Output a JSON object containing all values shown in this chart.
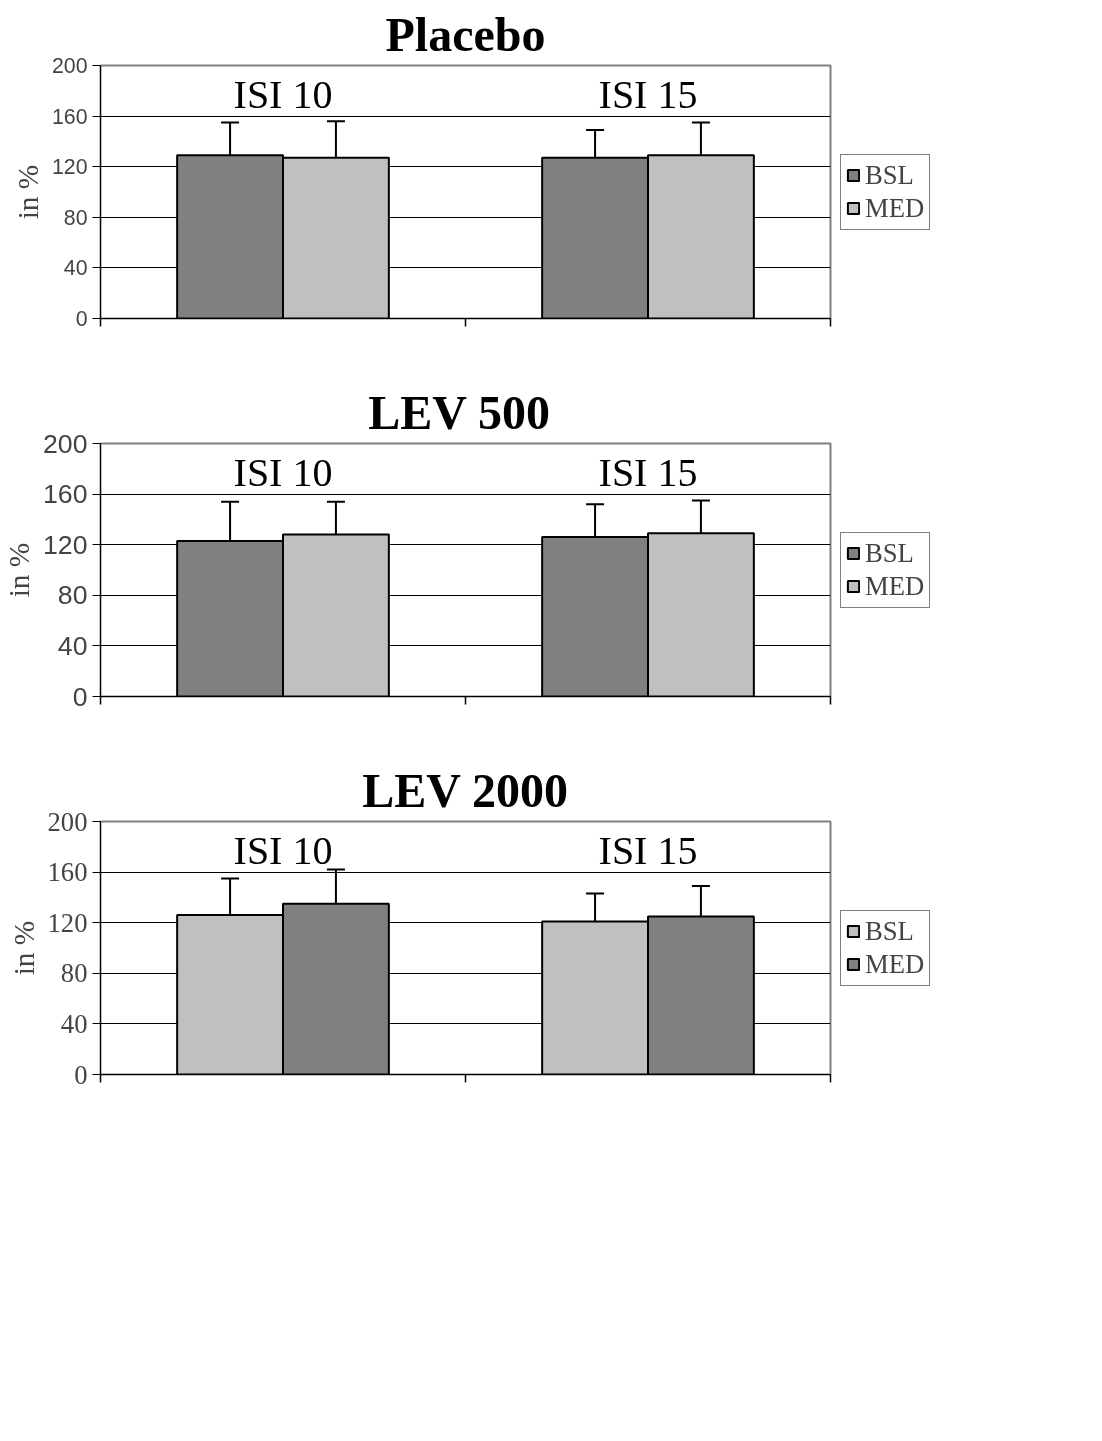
{
  "chart_data": [
    {
      "type": "bar",
      "title": "Placebo",
      "ylabel": "in %",
      "categories": [
        "ISI 10",
        "ISI 15"
      ],
      "series": [
        {
          "name": "BSL",
          "color": "#808080",
          "values": [
            129,
            127
          ],
          "errors": [
            [
              129,
              155
            ],
            [
              127,
              149
            ]
          ]
        },
        {
          "name": "MED",
          "color": "#c0c0c0",
          "values": [
            127,
            129
          ],
          "errors": [
            [
              127,
              156
            ],
            [
              129,
              155
            ]
          ]
        }
      ],
      "ylim": [
        0,
        200
      ],
      "yticks": [
        0,
        40,
        80,
        120,
        160,
        200
      ],
      "grid": "y",
      "legend": "right",
      "tick_labels": "y"
    },
    {
      "type": "bar",
      "title": "LEV  500",
      "ylabel": "in %",
      "categories": [
        "ISI 10",
        "ISI 15"
      ],
      "series": [
        {
          "name": "BSL",
          "color": "#808080",
          "values": [
            123,
            126
          ],
          "errors": [
            [
              123,
              154
            ],
            [
              126,
              152
            ]
          ]
        },
        {
          "name": "MED",
          "color": "#c0c0c0",
          "values": [
            128,
            129
          ],
          "errors": [
            [
              128,
              154
            ],
            [
              129,
              155
            ]
          ]
        }
      ],
      "ylim": [
        0,
        200
      ],
      "yticks": [
        0,
        40,
        80,
        120,
        160,
        200
      ],
      "grid": "y",
      "legend": "right",
      "tick_labels": "y"
    },
    {
      "type": "bar",
      "title": "LEV 2000",
      "ylabel": "in %",
      "categories": [
        "ISI 10",
        "ISI 15"
      ],
      "series": [
        {
          "name": "BSL",
          "color": "#c0c0c0",
          "values": [
            126,
            121
          ],
          "errors": [
            [
              126,
              155
            ],
            [
              121,
              143
            ]
          ]
        },
        {
          "name": "MED",
          "color": "#808080",
          "values": [
            135,
            125
          ],
          "errors": [
            [
              135,
              162
            ],
            [
              125,
              149
            ]
          ]
        }
      ],
      "ylim": [
        0,
        200
      ],
      "yticks": [
        0,
        40,
        80,
        120,
        160,
        200
      ],
      "grid": "y",
      "legend": "right",
      "tick_labels": "y"
    }
  ]
}
